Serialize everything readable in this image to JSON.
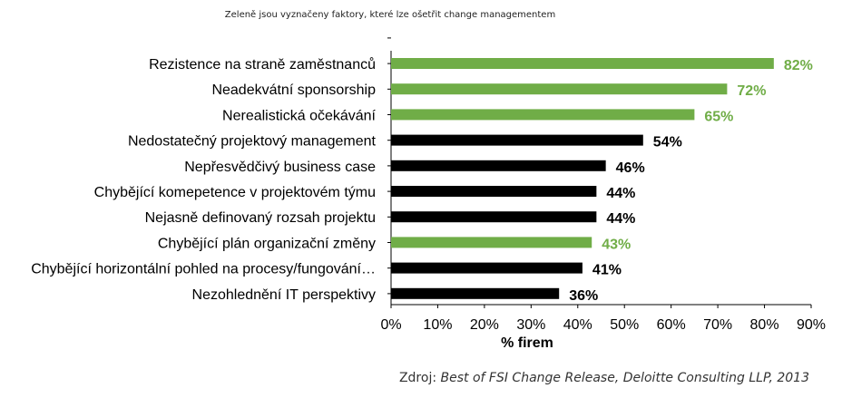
{
  "note": "Zeleně jsou vyznačeny faktory, které lze ošetřit change managementem",
  "source": {
    "prefix": "Zdroj: ",
    "title": "Best of FSI Change Release, Deloitte Consulting LLP, 2013"
  },
  "colors": {
    "green": "#70ad47",
    "black": "#000000"
  },
  "chart_data": {
    "type": "bar",
    "orientation": "horizontal",
    "categories": [
      "Rezistence na straně zaměstnanců",
      "Neadekvátní sponsorship",
      "Nerealistická očekávání",
      "Nedostatečný projektový management",
      "Nepřesvědčivý business case",
      "Chybějící komepetence v projektovém týmu",
      "Nejasně definovaný rozsah projektu",
      "Chybějící plán organizační změny",
      "Chybějící horizontální pohled na procesy/fungování…",
      "Nezohlednění IT perspektivy"
    ],
    "values": [
      82,
      72,
      65,
      54,
      46,
      44,
      44,
      43,
      41,
      36
    ],
    "value_labels": [
      "82%",
      "72%",
      "65%",
      "54%",
      "46%",
      "44%",
      "44%",
      "43%",
      "41%",
      "36%"
    ],
    "highlight": [
      "green",
      "green",
      "green",
      "black",
      "black",
      "black",
      "black",
      "green",
      "black",
      "black"
    ],
    "xlabel": "% firem",
    "xlim": [
      0,
      90
    ],
    "xticks": [
      0,
      10,
      20,
      30,
      40,
      50,
      60,
      70,
      80,
      90
    ],
    "xtick_labels": [
      "0%",
      "10%",
      "20%",
      "30%",
      "40%",
      "50%",
      "60%",
      "70%",
      "80%",
      "90%"
    ],
    "grid": false,
    "legend": "none"
  }
}
